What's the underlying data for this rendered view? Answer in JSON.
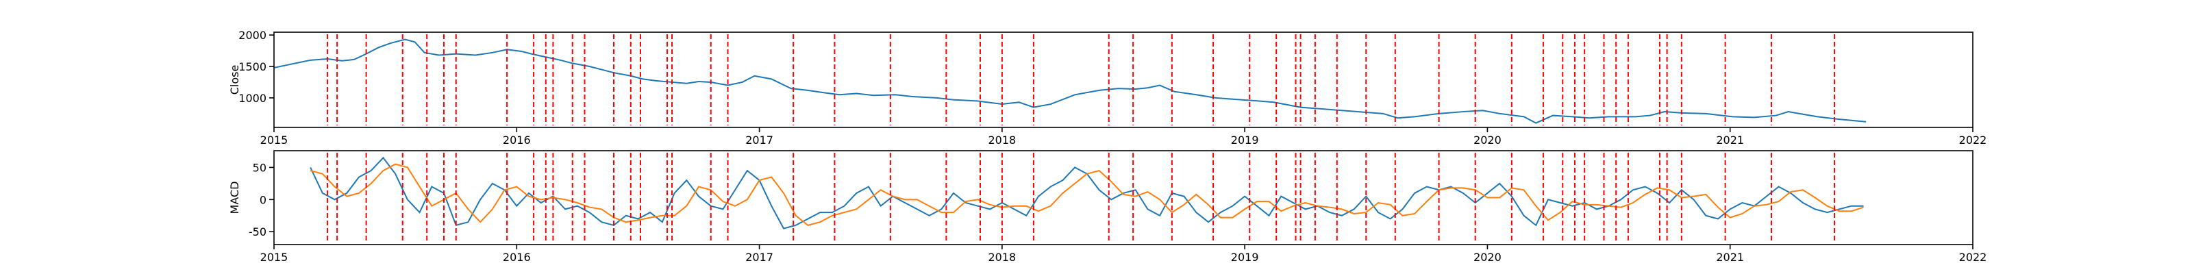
{
  "chart_data": [
    {
      "type": "line",
      "ylabel": "Close",
      "xlim": [
        2015,
        2022
      ],
      "xticks": [
        2015,
        2016,
        2017,
        2018,
        2019,
        2020,
        2021,
        2022
      ],
      "ylim": [
        530,
        2045
      ],
      "yticks": [
        1000,
        1500,
        2000
      ],
      "x": [
        2015.0,
        2015.05,
        2015.1,
        2015.15,
        2015.22,
        2015.28,
        2015.33,
        2015.38,
        2015.43,
        2015.48,
        2015.54,
        2015.58,
        2015.62,
        2015.68,
        2015.75,
        2015.83,
        2015.9,
        2015.96,
        2016.02,
        2016.06,
        2016.12,
        2016.18,
        2016.23,
        2016.3,
        2016.35,
        2016.4,
        2016.47,
        2016.52,
        2016.58,
        2016.64,
        2016.7,
        2016.75,
        2016.8,
        2016.87,
        2016.93,
        2016.98,
        2017.05,
        2017.13,
        2017.2,
        2017.27,
        2017.33,
        2017.4,
        2017.47,
        2017.56,
        2017.63,
        2017.73,
        2017.8,
        2017.9,
        2018.0,
        2018.07,
        2018.13,
        2018.2,
        2018.3,
        2018.4,
        2018.48,
        2018.55,
        2018.6,
        2018.65,
        2018.71,
        2018.8,
        2018.88,
        2018.95,
        2019.06,
        2019.12,
        2019.23,
        2019.3,
        2019.4,
        2019.5,
        2019.57,
        2019.63,
        2019.7,
        2019.8,
        2019.9,
        2019.98,
        2020.05,
        2020.15,
        2020.2,
        2020.27,
        2020.35,
        2020.42,
        2020.5,
        2020.61,
        2020.67,
        2020.73,
        2020.8,
        2020.9,
        2021.01,
        2021.1,
        2021.19,
        2021.24,
        2021.3,
        2021.36,
        2021.45,
        2021.56
      ],
      "series": [
        {
          "color": "#1f77b4",
          "values": [
            1480,
            1520,
            1560,
            1600,
            1620,
            1590,
            1610,
            1700,
            1800,
            1870,
            1930,
            1890,
            1720,
            1680,
            1700,
            1680,
            1720,
            1770,
            1740,
            1700,
            1650,
            1600,
            1550,
            1500,
            1450,
            1400,
            1350,
            1300,
            1270,
            1250,
            1230,
            1260,
            1250,
            1200,
            1250,
            1350,
            1300,
            1150,
            1120,
            1080,
            1050,
            1070,
            1040,
            1050,
            1020,
            1000,
            970,
            950,
            900,
            930,
            850,
            900,
            1050,
            1120,
            1150,
            1140,
            1160,
            1200,
            1100,
            1050,
            1000,
            980,
            950,
            930,
            850,
            830,
            800,
            770,
            750,
            680,
            700,
            750,
            780,
            800,
            750,
            700,
            600,
            720,
            700,
            680,
            700,
            700,
            720,
            780,
            760,
            750,
            700,
            690,
            720,
            780,
            740,
            700,
            660,
            620
          ]
        }
      ],
      "vlines": {
        "color": "#ff0000",
        "x": [
          2015.22,
          2015.26,
          2015.38,
          2015.53,
          2015.63,
          2015.7,
          2015.75,
          2015.96,
          2016.07,
          2016.12,
          2016.15,
          2016.23,
          2016.28,
          2016.4,
          2016.47,
          2016.51,
          2016.62,
          2016.64,
          2016.8,
          2016.87,
          2017.14,
          2017.31,
          2017.54,
          2017.77,
          2017.91,
          2018.0,
          2018.13,
          2018.44,
          2018.54,
          2018.7,
          2018.87,
          2019.02,
          2019.13,
          2019.21,
          2019.23,
          2019.29,
          2019.38,
          2019.5,
          2019.62,
          2019.8,
          2019.95,
          2020.1,
          2020.23,
          2020.31,
          2020.36,
          2020.4,
          2020.48,
          2020.53,
          2020.58,
          2020.71,
          2020.74,
          2020.8,
          2020.98,
          2021.17,
          2021.43
        ]
      }
    },
    {
      "type": "line",
      "ylabel": "MACD",
      "xlim": [
        2015,
        2022
      ],
      "xticks": [
        2015,
        2016,
        2017,
        2018,
        2019,
        2020,
        2021,
        2022
      ],
      "ylim": [
        -70,
        76
      ],
      "yticks": [
        -50,
        0,
        50
      ],
      "x": [
        2015.15,
        2015.2,
        2015.25,
        2015.3,
        2015.35,
        2015.4,
        2015.45,
        2015.5,
        2015.55,
        2015.6,
        2015.65,
        2015.7,
        2015.75,
        2015.8,
        2015.85,
        2015.9,
        2015.95,
        2016.0,
        2016.05,
        2016.1,
        2016.15,
        2016.2,
        2016.25,
        2016.3,
        2016.35,
        2016.4,
        2016.45,
        2016.5,
        2016.55,
        2016.6,
        2016.65,
        2016.7,
        2016.75,
        2016.8,
        2016.85,
        2016.9,
        2016.95,
        2017.0,
        2017.05,
        2017.1,
        2017.15,
        2017.2,
        2017.25,
        2017.3,
        2017.35,
        2017.4,
        2017.45,
        2017.5,
        2017.55,
        2017.6,
        2017.65,
        2017.7,
        2017.75,
        2017.8,
        2017.85,
        2017.9,
        2017.95,
        2018.0,
        2018.05,
        2018.1,
        2018.15,
        2018.2,
        2018.25,
        2018.3,
        2018.35,
        2018.4,
        2018.45,
        2018.5,
        2018.55,
        2018.6,
        2018.65,
        2018.7,
        2018.75,
        2018.8,
        2018.85,
        2018.9,
        2018.95,
        2019.0,
        2019.05,
        2019.1,
        2019.15,
        2019.2,
        2019.25,
        2019.3,
        2019.35,
        2019.4,
        2019.45,
        2019.5,
        2019.55,
        2019.6,
        2019.65,
        2019.7,
        2019.75,
        2019.8,
        2019.85,
        2019.9,
        2019.95,
        2020.0,
        2020.05,
        2020.1,
        2020.15,
        2020.2,
        2020.25,
        2020.3,
        2020.35,
        2020.4,
        2020.45,
        2020.5,
        2020.55,
        2020.6,
        2020.65,
        2020.7,
        2020.75,
        2020.8,
        2020.85,
        2020.9,
        2020.95,
        2021.0,
        2021.05,
        2021.1,
        2021.15,
        2021.2,
        2021.25,
        2021.3,
        2021.35,
        2021.4,
        2021.45,
        2021.5,
        2021.55
      ],
      "series": [
        {
          "color": "#1f77b4",
          "values": [
            50,
            10,
            0,
            10,
            35,
            45,
            65,
            40,
            0,
            -20,
            20,
            10,
            -40,
            -35,
            0,
            25,
            15,
            -10,
            10,
            -5,
            5,
            -15,
            -10,
            -20,
            -35,
            -40,
            -25,
            -30,
            -20,
            -35,
            10,
            30,
            5,
            -10,
            -15,
            15,
            45,
            30,
            -10,
            -45,
            -40,
            -30,
            -20,
            -20,
            -10,
            10,
            20,
            -10,
            5,
            -5,
            -15,
            -25,
            -15,
            10,
            -5,
            -10,
            -15,
            -5,
            -15,
            -25,
            5,
            20,
            30,
            50,
            40,
            15,
            0,
            10,
            15,
            -15,
            -25,
            10,
            5,
            -20,
            -35,
            -20,
            -10,
            5,
            -10,
            -25,
            5,
            -5,
            -15,
            -10,
            -20,
            -25,
            -15,
            5,
            -20,
            -30,
            -15,
            10,
            20,
            15,
            20,
            10,
            -5,
            10,
            25,
            5,
            -25,
            -40,
            0,
            -5,
            -10,
            -5,
            -15,
            -10,
            0,
            15,
            20,
            10,
            -5,
            15,
            0,
            -25,
            -30,
            -15,
            -5,
            -10,
            5,
            20,
            10,
            -5,
            -15,
            -20,
            -15,
            -10,
            -10
          ]
        },
        {
          "color": "#ff7f0e",
          "values": [
            45,
            40,
            20,
            5,
            10,
            25,
            45,
            55,
            50,
            20,
            -10,
            0,
            10,
            -15,
            -35,
            -15,
            15,
            20,
            5,
            0,
            3,
            0,
            -5,
            -12,
            -15,
            -28,
            -35,
            -32,
            -28,
            -25,
            -25,
            -10,
            20,
            15,
            -3,
            -10,
            0,
            30,
            35,
            10,
            -25,
            -40,
            -35,
            -25,
            -20,
            -15,
            0,
            15,
            5,
            0,
            0,
            -10,
            -20,
            -20,
            -3,
            0,
            -8,
            -12,
            -10,
            -10,
            -18,
            -10,
            10,
            25,
            40,
            45,
            28,
            8,
            5,
            12,
            0,
            -20,
            -8,
            8,
            -8,
            -28,
            -28,
            -15,
            -3,
            -3,
            -18,
            -10,
            -5,
            -10,
            -12,
            -15,
            -22,
            -20,
            -5,
            -8,
            -25,
            -22,
            -3,
            15,
            18,
            18,
            15,
            3,
            3,
            18,
            15,
            -10,
            -32,
            -20,
            -3,
            -8,
            -8,
            -10,
            -12,
            -5,
            8,
            18,
            15,
            3,
            5,
            8,
            -12,
            -28,
            -22,
            -10,
            -8,
            -3,
            12,
            15,
            3,
            -10,
            -18,
            -18,
            -12
          ]
        }
      ],
      "vlines": {
        "color": "#ff0000",
        "x": [
          2015.22,
          2015.26,
          2015.38,
          2015.53,
          2015.63,
          2015.7,
          2015.75,
          2015.96,
          2016.07,
          2016.12,
          2016.15,
          2016.23,
          2016.28,
          2016.4,
          2016.47,
          2016.51,
          2016.62,
          2016.64,
          2016.8,
          2016.87,
          2017.14,
          2017.31,
          2017.54,
          2017.77,
          2017.91,
          2018.0,
          2018.13,
          2018.44,
          2018.54,
          2018.7,
          2018.87,
          2019.02,
          2019.13,
          2019.21,
          2019.23,
          2019.29,
          2019.38,
          2019.5,
          2019.62,
          2019.8,
          2019.95,
          2020.1,
          2020.23,
          2020.31,
          2020.36,
          2020.4,
          2020.48,
          2020.53,
          2020.58,
          2020.71,
          2020.74,
          2020.8,
          2020.98,
          2021.17,
          2021.43
        ]
      }
    }
  ]
}
